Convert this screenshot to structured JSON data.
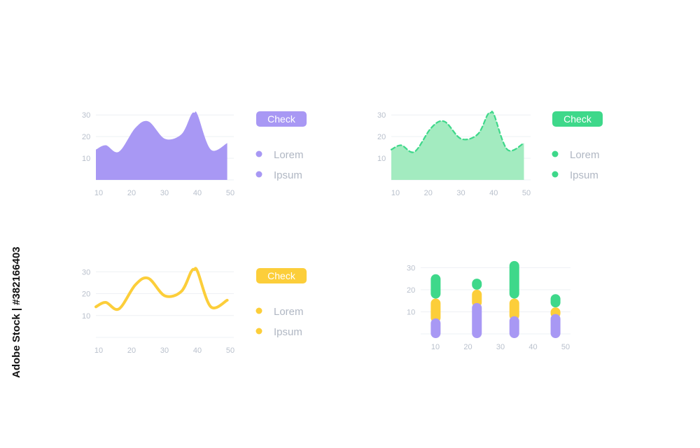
{
  "colors": {
    "purple": "#a898f4",
    "green": "#3ed88a",
    "green_fill": "#a3ebc0",
    "yellow": "#fcce3a",
    "grid": "#eef0f4",
    "tick": "#b9c0cc",
    "legend_text": "#b0b7c3"
  },
  "panels": [
    {
      "button_label": "Check",
      "accent": "#a898f4",
      "legend": [
        "Lorem",
        "Ipsum"
      ]
    },
    {
      "button_label": "Check",
      "accent": "#3ed88a",
      "legend": [
        "Lorem",
        "Ipsum"
      ]
    },
    {
      "button_label": "Check",
      "accent": "#fcce3a",
      "legend": [
        "Lorem",
        "Ipsum"
      ]
    }
  ],
  "watermark": "Adobe Stock | #382166403",
  "chart_data": [
    {
      "type": "area",
      "x_ticks": [
        "10",
        "20",
        "30",
        "40",
        "50"
      ],
      "y_ticks": [
        "10",
        "20",
        "30"
      ],
      "x": [
        10,
        13,
        17,
        22,
        26,
        31,
        36,
        39,
        40,
        41,
        45,
        50
      ],
      "values": [
        14,
        16,
        13,
        24,
        27,
        19,
        21,
        30,
        31,
        30,
        14,
        17
      ],
      "xlim": [
        10,
        52
      ],
      "ylim": [
        0,
        32
      ],
      "grid": true,
      "series_color": "#a898f4"
    },
    {
      "type": "area",
      "x_ticks": [
        "10",
        "20",
        "30",
        "40",
        "50"
      ],
      "y_ticks": [
        "10",
        "20",
        "30"
      ],
      "x": [
        10,
        13,
        17,
        22,
        26,
        31,
        36,
        39,
        40,
        41,
        45,
        50
      ],
      "values": [
        14,
        16,
        13,
        24,
        27,
        19,
        21,
        30,
        31,
        30,
        14,
        17
      ],
      "xlim": [
        10,
        52
      ],
      "ylim": [
        0,
        32
      ],
      "grid": true,
      "line_style": "dashed",
      "series_color": "#3ed88a"
    },
    {
      "type": "line",
      "x_ticks": [
        "10",
        "20",
        "30",
        "40",
        "50"
      ],
      "y_ticks": [
        "10",
        "20",
        "30"
      ],
      "x": [
        10,
        13,
        17,
        22,
        26,
        31,
        36,
        39,
        40,
        41,
        45,
        50
      ],
      "values": [
        14,
        16,
        13,
        24,
        27,
        19,
        21,
        30,
        31,
        30,
        14,
        17
      ],
      "xlim": [
        10,
        52
      ],
      "ylim": [
        0,
        32
      ],
      "grid": true,
      "series_color": "#fcce3a"
    },
    {
      "type": "bar",
      "stacked": true,
      "x_ticks": [
        "10",
        "20",
        "30",
        "40",
        "50"
      ],
      "y_ticks": [
        "10",
        "20",
        "30"
      ],
      "x": [
        14,
        25,
        35,
        46
      ],
      "ylim": [
        0,
        32
      ],
      "xlim": [
        10,
        50
      ],
      "grid": true,
      "series": [
        {
          "color": "#a898f4",
          "values": [
            7,
            14,
            8,
            9
          ]
        },
        {
          "color": "#fcce3a",
          "values": [
            9,
            6,
            8,
            3
          ]
        },
        {
          "color": "#3ed88a",
          "values": [
            11,
            5,
            17,
            6
          ]
        }
      ]
    }
  ]
}
